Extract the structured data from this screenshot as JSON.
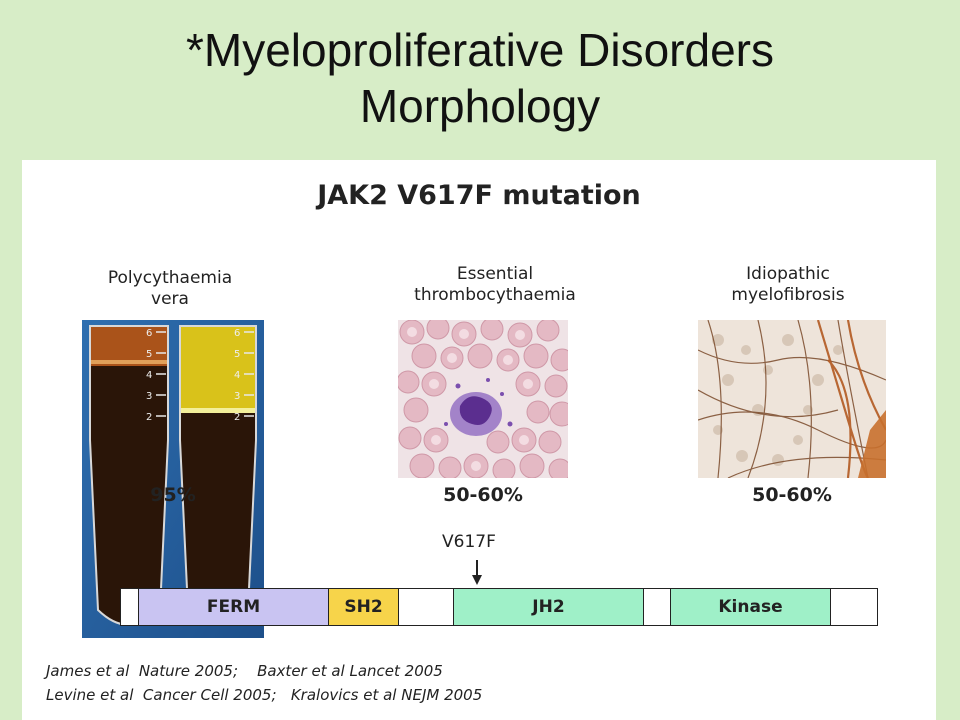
{
  "title": {
    "line1": "*Myeloproliferative Disorders",
    "line2": "Morphology"
  },
  "figure": {
    "heading": "JAK2 V617F mutation",
    "panels": [
      {
        "label_line1": "Polycythaemia",
        "label_line2": "vera",
        "percent": "95%"
      },
      {
        "label_line1": "Essential",
        "label_line2": "thrombocythaemia",
        "percent": "50-60%"
      },
      {
        "label_line1": "Idiopathic",
        "label_line2": "myelofibrosis",
        "percent": "50-60%"
      }
    ],
    "tube_scale": [
      "6",
      "5",
      "4",
      "3",
      "2"
    ],
    "mutation_label": "V617F",
    "domains": [
      {
        "label": "",
        "color": "#ffffff"
      },
      {
        "label": "FERM",
        "color": "#c9c4f2"
      },
      {
        "label": "SH2",
        "color": "#f7d44a"
      },
      {
        "label": "",
        "color": "#ffffff"
      },
      {
        "label": "JH2",
        "color": "#9ff0c8"
      },
      {
        "label": "",
        "color": "#ffffff"
      },
      {
        "label": "Kinase",
        "color": "#9ff0c8"
      },
      {
        "label": "",
        "color": "#ffffff"
      }
    ],
    "references": [
      "James et al  Nature 2005;    Baxter et al Lancet 2005",
      "Levine et al  Cancer Cell 2005;   Kralovics et al NEJM 2005"
    ]
  }
}
